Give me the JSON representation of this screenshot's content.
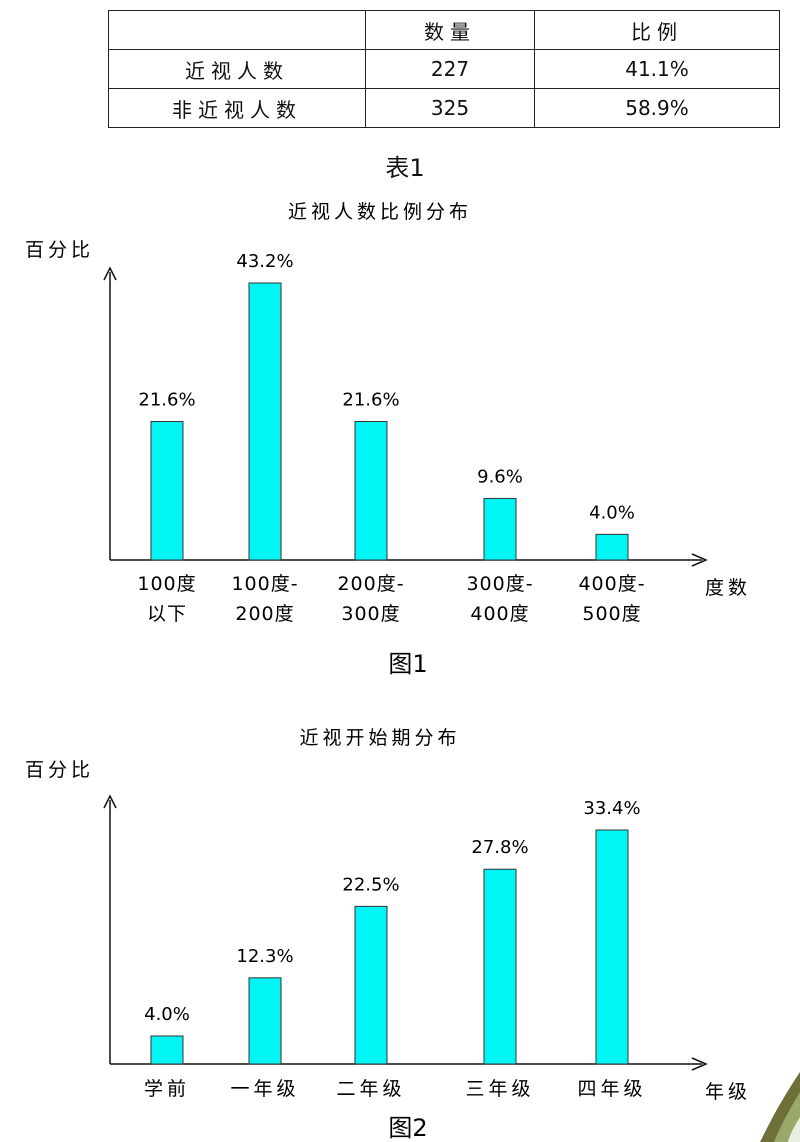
{
  "table": {
    "headers": [
      "",
      "数量",
      "比例"
    ],
    "rows": [
      [
        "近视人数",
        "227",
        "41.1%"
      ],
      [
        "非近视人数",
        "325",
        "58.9%"
      ]
    ],
    "caption": "表1"
  },
  "colors": {
    "bar_fill": "#00f5f5",
    "bar_stroke": "#333333",
    "axis": "#111111"
  },
  "chart_data": [
    {
      "type": "bar",
      "title": "近视人数比例分布",
      "ylabel": "百分比",
      "xlabel": "度数",
      "categories": [
        [
          "100度",
          "以下"
        ],
        [
          "100度-",
          "200度"
        ],
        [
          "200度-",
          "300度"
        ],
        [
          "300度-",
          "400度"
        ],
        [
          "400度-",
          "500度"
        ]
      ],
      "values": [
        21.6,
        43.2,
        21.6,
        9.6,
        4.0
      ],
      "labels": [
        "21.6%",
        "43.2%",
        "21.6%",
        "9.6%",
        "4.0%"
      ],
      "ylim": [
        0,
        43.2
      ],
      "caption": "图1"
    },
    {
      "type": "bar",
      "title": "近视开始期分布",
      "ylabel": "百分比",
      "xlabel": "年级",
      "categories": [
        [
          "学前"
        ],
        [
          "一年级"
        ],
        [
          "二年级"
        ],
        [
          "三年级"
        ],
        [
          "四年级"
        ]
      ],
      "values": [
        4.0,
        12.3,
        22.5,
        27.8,
        33.4
      ],
      "labels": [
        "4.0%",
        "12.3%",
        "22.5%",
        "27.8%",
        "33.4%"
      ],
      "ylim": [
        0,
        33.4
      ],
      "caption": "图2"
    }
  ]
}
